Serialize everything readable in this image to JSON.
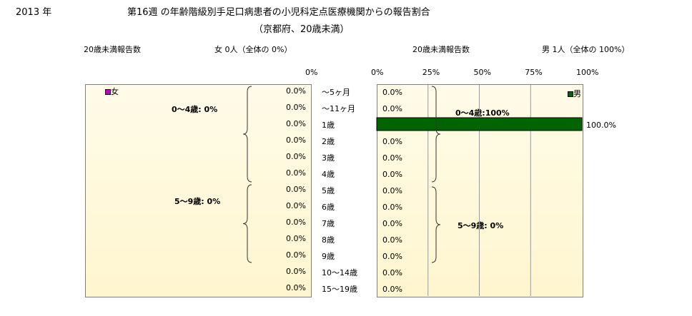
{
  "header": {
    "year": "2013 年",
    "title_line1": "第16週 の年齢階級別手足口病患者の小児科定点医療機関からの報告割合",
    "title_line2": "（京都府、20歳未満）"
  },
  "female": {
    "caption_left": "20歳未満報告数",
    "caption_right": "女  0人（全体の  0%）",
    "legend": "女",
    "axis_tick": "0%",
    "group_0_4": "0～4歳:  0%",
    "group_5_9": "5～9歳:  0%",
    "color": "#c000c0"
  },
  "male": {
    "caption_left": "20歳未満報告数",
    "caption_right": "男  1人（全体の  100%）",
    "legend": "男",
    "axis_ticks": [
      "0%",
      "25%",
      "50%",
      "75%",
      "100%"
    ],
    "group_0_4": "0～4歳:100%",
    "group_5_9": "5～9歳:  0%",
    "color": "#006400"
  },
  "chart_data": {
    "type": "bar",
    "categories": [
      "～5ヶ月",
      "～11ヶ月",
      "1歳",
      "2歳",
      "3歳",
      "4歳",
      "5歳",
      "6歳",
      "7歳",
      "8歳",
      "9歳",
      "10～14歳",
      "15～19歳"
    ],
    "series": [
      {
        "name": "女",
        "values": [
          0,
          0,
          0,
          0,
          0,
          0,
          0,
          0,
          0,
          0,
          0,
          0,
          0
        ],
        "labels": [
          "0.0%",
          "0.0%",
          "0.0%",
          "0.0%",
          "0.0%",
          "0.0%",
          "0.0%",
          "0.0%",
          "0.0%",
          "0.0%",
          "0.0%",
          "0.0%",
          "0.0%"
        ]
      },
      {
        "name": "男",
        "values": [
          0,
          0,
          100,
          0,
          0,
          0,
          0,
          0,
          0,
          0,
          0,
          0,
          0
        ],
        "labels": [
          "0.0%",
          "0.0%",
          "100.0%",
          "0.0%",
          "0.0%",
          "0.0%",
          "0.0%",
          "0.0%",
          "0.0%",
          "0.0%",
          "0.0%",
          "0.0%",
          "0.0%"
        ]
      }
    ],
    "xlim": [
      0,
      100
    ],
    "grid": true
  }
}
